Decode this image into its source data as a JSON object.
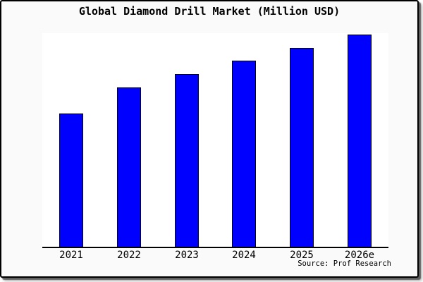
{
  "figure": {
    "title": "Global Diamond Drill Market (Million USD)",
    "source": "Source: Prof Research",
    "colors": {
      "bar_fill": "#0000ff",
      "bar_edge": "#000000",
      "card_background": "#fafafa",
      "plot_background": "#ffffff",
      "axis": "#000000"
    }
  },
  "chart_data": {
    "type": "bar",
    "title": "Global Diamond Drill Market (Million USD)",
    "categories": [
      "2021",
      "2022",
      "2023",
      "2024",
      "2025",
      "2026e"
    ],
    "values": [
      62.8,
      75.1,
      81.4,
      87.7,
      93.7,
      100
    ],
    "value_scale_note": "y-axis has no tick labels; values are relative, tallest bar normalized to 100",
    "xlabel": "",
    "ylabel": "",
    "ylim": [
      0,
      101
    ],
    "grid": false,
    "legend": false,
    "bar_color": "#0000ff",
    "bar_edge_color": "#000000",
    "source": "Source: Prof Research"
  }
}
